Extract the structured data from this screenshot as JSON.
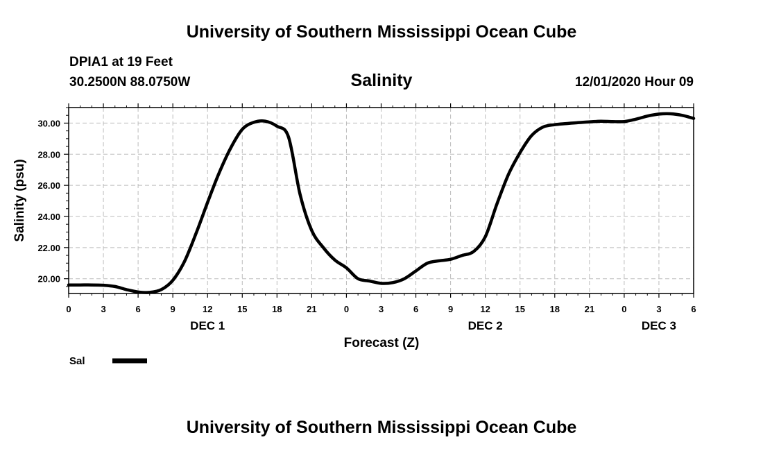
{
  "header": {
    "title_top": "University of Southern Mississippi Ocean Cube",
    "station": "DPIA1 at 19 Feet",
    "coords": "30.2500N 88.0750W",
    "chart_title": "Salinity",
    "datetime": "12/01/2020 Hour 09",
    "title_bottom": "University of Southern Mississippi Ocean Cube"
  },
  "colors": {
    "line": "#000000",
    "grid": "#bbbbbb"
  },
  "chart_data": {
    "type": "line",
    "title": "Salinity",
    "xlabel": "Forecast (Z)",
    "ylabel": "Salinity (psu)",
    "xlim": [
      0,
      54
    ],
    "ylim": [
      19.05,
      31.0
    ],
    "grid": true,
    "legend_position": "bottom-left",
    "x_ticks": [
      0,
      3,
      6,
      9,
      12,
      15,
      18,
      21,
      24,
      27,
      30,
      33,
      36,
      39,
      42,
      45,
      48,
      51,
      54
    ],
    "x_tick_labels": [
      "0",
      "3",
      "6",
      "9",
      "12",
      "15",
      "18",
      "21",
      "0",
      "3",
      "6",
      "9",
      "12",
      "15",
      "18",
      "21",
      "0",
      "3",
      "6"
    ],
    "y_ticks": [
      20,
      22,
      24,
      26,
      28,
      30
    ],
    "y_tick_labels": [
      "20.00",
      "22.00",
      "24.00",
      "26.00",
      "28.00",
      "30.00"
    ],
    "day_labels": [
      {
        "x": 12,
        "label": "DEC 1"
      },
      {
        "x": 36,
        "label": "DEC 2"
      },
      {
        "x": 51,
        "label": "DEC 3"
      }
    ],
    "series": [
      {
        "name": "Sal",
        "x": [
          0,
          1,
          2,
          3,
          4,
          5,
          6,
          7,
          8,
          9,
          10,
          11,
          12,
          13,
          14,
          15,
          16,
          17,
          18,
          19,
          20,
          21,
          22,
          23,
          24,
          25,
          26,
          27,
          28,
          29,
          30,
          31,
          32,
          33,
          34,
          35,
          36,
          37,
          38,
          39,
          40,
          41,
          42,
          43,
          44,
          45,
          46,
          47,
          48,
          49,
          50,
          51,
          52,
          53,
          54
        ],
        "values": [
          19.6,
          19.6,
          19.6,
          19.58,
          19.5,
          19.3,
          19.15,
          19.12,
          19.3,
          19.9,
          21.1,
          22.9,
          24.9,
          26.8,
          28.4,
          29.6,
          30.05,
          30.12,
          29.8,
          29.1,
          25.4,
          23.1,
          22.0,
          21.2,
          20.7,
          20.0,
          19.85,
          19.7,
          19.75,
          20.0,
          20.5,
          21.0,
          21.15,
          21.25,
          21.5,
          21.75,
          22.7,
          24.8,
          26.7,
          28.1,
          29.2,
          29.75,
          29.9,
          29.97,
          30.03,
          30.08,
          30.12,
          30.1,
          30.1,
          30.25,
          30.45,
          30.58,
          30.6,
          30.5,
          30.3
        ]
      }
    ]
  }
}
